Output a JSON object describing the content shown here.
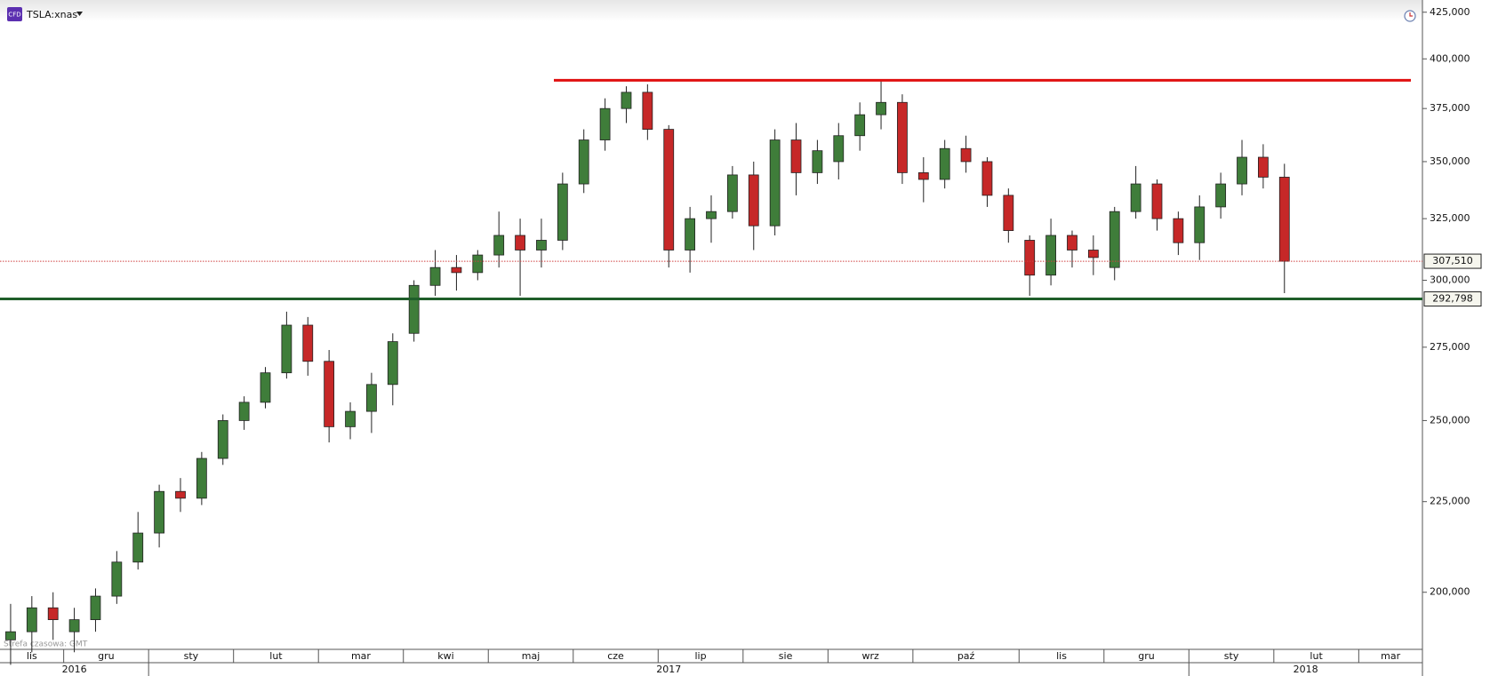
{
  "chart_data": {
    "type": "candlestick",
    "badge": "CFD",
    "title": "TSLA:xnas",
    "timezone_note": "Strefa czasowa: GMT",
    "scale": "log",
    "ylim": [
      185700,
      431800
    ],
    "yticks": [
      {
        "value": 200000,
        "label": "200,000"
      },
      {
        "value": 225000,
        "label": "225,000"
      },
      {
        "value": 250000,
        "label": "250,000"
      },
      {
        "value": 275000,
        "label": "275,000"
      },
      {
        "value": 300000,
        "label": "300,000"
      },
      {
        "value": 325000,
        "label": "325,000"
      },
      {
        "value": 350000,
        "label": "350,000"
      },
      {
        "value": 375000,
        "label": "375,000"
      },
      {
        "value": 400000,
        "label": "400,000"
      },
      {
        "value": 425000,
        "label": "425,000"
      }
    ],
    "up_color": "#3f7d3a",
    "down_color": "#c62828",
    "resistance": {
      "value": 389000,
      "color": "#e01010"
    },
    "price_markers": [
      {
        "value": 307510,
        "label": "307,510",
        "color": "#d04040",
        "style": "dotted"
      },
      {
        "value": 292798,
        "label": "292,798",
        "color": "#1f5e2a",
        "style": "solid"
      }
    ],
    "years": [
      {
        "label": "2016",
        "months": [
          {
            "label": "lis",
            "candles": [
              [
                188000,
                197000,
                182000,
                190000
              ],
              [
                190000,
                199000,
                185000,
                196000
              ],
              [
                196000,
                200000,
                188000,
                193000
              ]
            ]
          },
          {
            "label": "gru",
            "candles": [
              [
                190000,
                196000,
                185000,
                193000
              ],
              [
                193000,
                201000,
                190000,
                199000
              ],
              [
                199000,
                211000,
                197000,
                208000
              ],
              [
                208000,
                222000,
                206000,
                216000
              ]
            ]
          }
        ]
      },
      {
        "label": "2017",
        "months": [
          {
            "label": "sty",
            "candles": [
              [
                216000,
                230000,
                212000,
                228000
              ],
              [
                228000,
                232000,
                222000,
                226000
              ],
              [
                226000,
                240000,
                224000,
                238000
              ],
              [
                238000,
                252000,
                236000,
                250000
              ]
            ]
          },
          {
            "label": "lut",
            "candles": [
              [
                250000,
                258000,
                247000,
                256000
              ],
              [
                256000,
                268000,
                254000,
                266000
              ],
              [
                266000,
                288000,
                264000,
                283000
              ],
              [
                283000,
                286000,
                265000,
                270000
              ]
            ]
          },
          {
            "label": "mar",
            "candles": [
              [
                270000,
                274000,
                243000,
                248000
              ],
              [
                248000,
                256000,
                244000,
                253000
              ],
              [
                253000,
                266000,
                246000,
                262000
              ],
              [
                262000,
                280000,
                255000,
                277000
              ]
            ]
          },
          {
            "label": "kwi",
            "candles": [
              [
                280000,
                300000,
                277000,
                298000
              ],
              [
                298000,
                312000,
                294000,
                305000
              ],
              [
                305000,
                310000,
                296000,
                303000
              ],
              [
                303000,
                312000,
                300000,
                310000
              ]
            ]
          },
          {
            "label": "maj",
            "candles": [
              [
                310000,
                328000,
                305000,
                318000
              ],
              [
                318000,
                325000,
                294000,
                312000
              ],
              [
                312000,
                325000,
                305000,
                316000
              ],
              [
                316000,
                345000,
                312000,
                340000
              ]
            ]
          },
          {
            "label": "cze",
            "candles": [
              [
                340000,
                365000,
                336000,
                360000
              ],
              [
                360000,
                380000,
                355000,
                375000
              ],
              [
                375000,
                386000,
                368000,
                383000
              ],
              [
                383000,
                387000,
                360000,
                365000
              ]
            ]
          },
          {
            "label": "lip",
            "candles": [
              [
                365000,
                367000,
                305000,
                312000
              ],
              [
                312000,
                330000,
                303000,
                325000
              ],
              [
                325000,
                335000,
                315000,
                328000
              ],
              [
                328000,
                348000,
                325000,
                344000
              ]
            ]
          },
          {
            "label": "sie",
            "candles": [
              [
                344000,
                350000,
                312000,
                322000
              ],
              [
                322000,
                365000,
                318000,
                360000
              ],
              [
                360000,
                368000,
                335000,
                345000
              ],
              [
                345000,
                360000,
                340000,
                355000
              ]
            ]
          },
          {
            "label": "wrz",
            "candles": [
              [
                350000,
                368000,
                342000,
                362000
              ],
              [
                362000,
                378000,
                355000,
                372000
              ],
              [
                372000,
                389000,
                365000,
                378000
              ],
              [
                378000,
                382000,
                340000,
                345000
              ]
            ]
          },
          {
            "label": "paź",
            "candles": [
              [
                345000,
                352000,
                332000,
                342000
              ],
              [
                342000,
                360000,
                338000,
                356000
              ],
              [
                356000,
                362000,
                345000,
                350000
              ],
              [
                350000,
                352000,
                330000,
                335000
              ],
              [
                335000,
                338000,
                315000,
                320000
              ]
            ]
          },
          {
            "label": "lis",
            "candles": [
              [
                316000,
                318000,
                294000,
                302000
              ],
              [
                302000,
                325000,
                298000,
                318000
              ],
              [
                318000,
                320000,
                305000,
                312000
              ],
              [
                312000,
                318000,
                302000,
                309000
              ]
            ]
          },
          {
            "label": "gru",
            "candles": [
              [
                305000,
                330000,
                300000,
                328000
              ],
              [
                328000,
                348000,
                325000,
                340000
              ],
              [
                340000,
                342000,
                320000,
                325000
              ],
              [
                325000,
                328000,
                310000,
                315000
              ]
            ]
          }
        ]
      },
      {
        "label": "2018",
        "months": [
          {
            "label": "sty",
            "candles": [
              [
                315000,
                335000,
                308000,
                330000
              ],
              [
                330000,
                345000,
                325000,
                340000
              ],
              [
                340000,
                360000,
                335000,
                352000
              ],
              [
                352000,
                358000,
                338000,
                343000
              ]
            ]
          },
          {
            "label": "lut",
            "candles": [
              [
                343000,
                349000,
                295000,
                307510
              ],
              null,
              null,
              null
            ]
          },
          {
            "label": "mar",
            "candles": [
              null,
              null,
              null
            ]
          }
        ]
      }
    ]
  }
}
